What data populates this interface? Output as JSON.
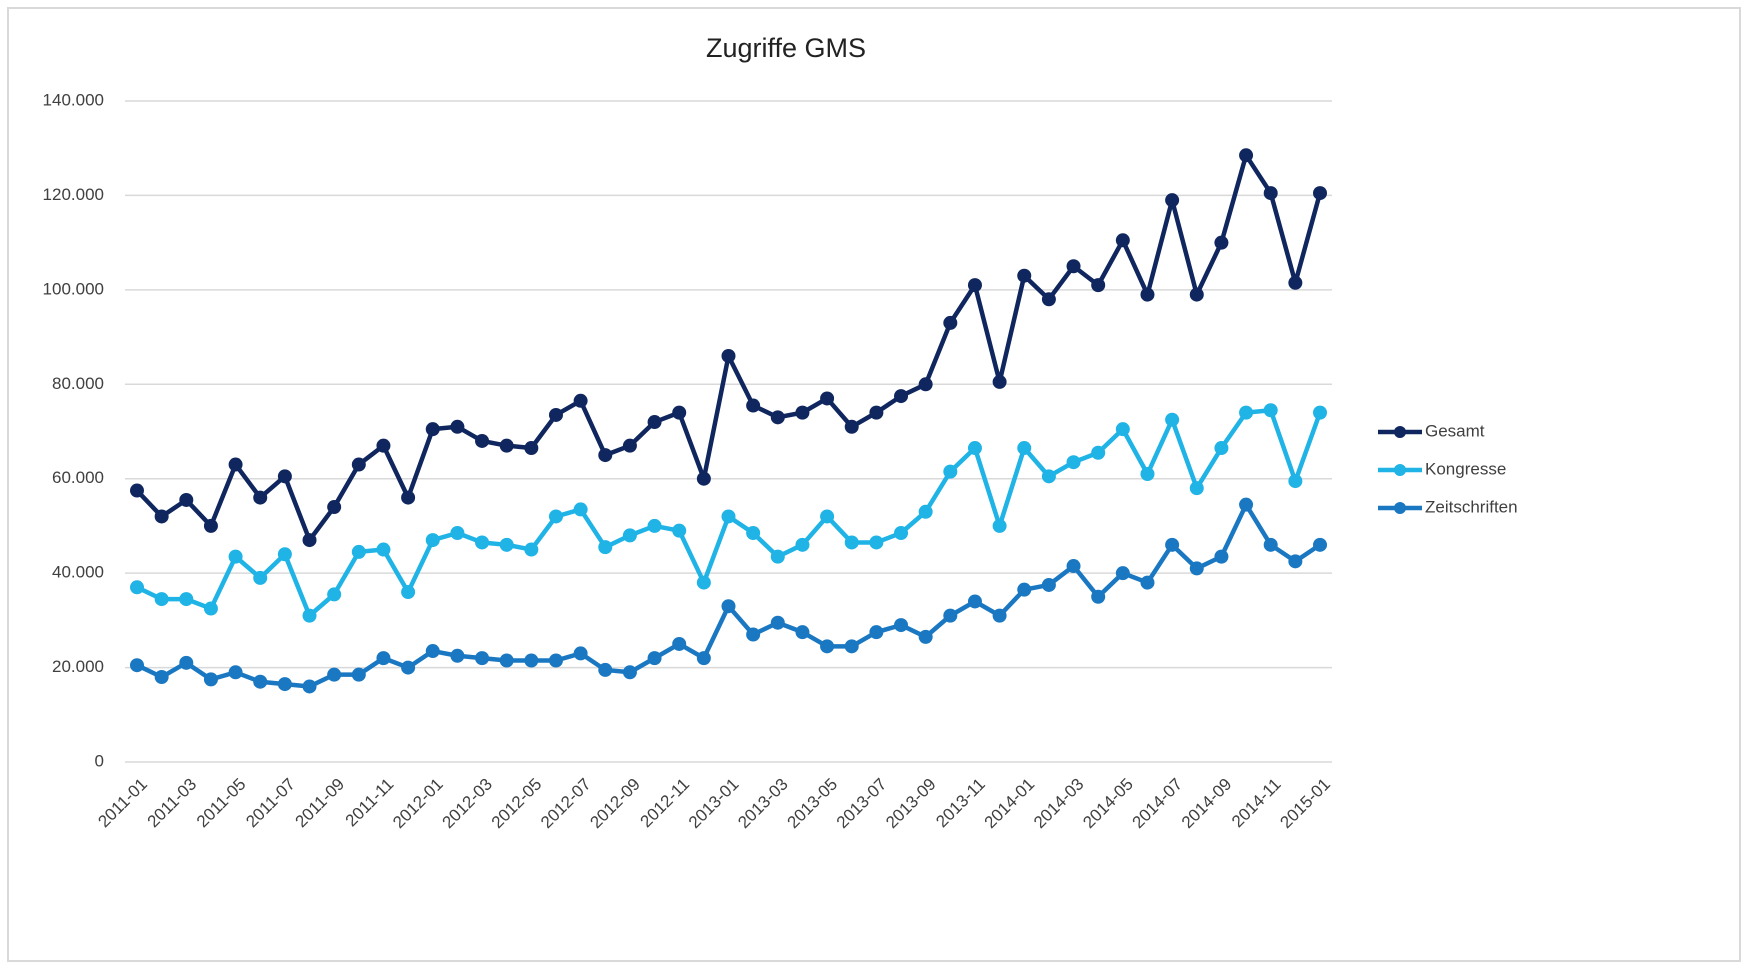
{
  "chart_data": {
    "type": "line",
    "title": "Zugriffe GMS",
    "categories": [
      "2011-01",
      null,
      "2011-03",
      null,
      "2011-05",
      null,
      "2011-07",
      null,
      "2011-09",
      null,
      "2011-11",
      null,
      "2012-01",
      null,
      "2012-03",
      null,
      "2012-05",
      null,
      "2012-07",
      null,
      "2012-09",
      null,
      "2012-11",
      null,
      "2013-01",
      null,
      "2013-03",
      null,
      "2013-05",
      null,
      "2013-07",
      null,
      "2013-09",
      null,
      "2013-11",
      null,
      "2014-01",
      null,
      "2014-03",
      null,
      "2014-05",
      null,
      "2014-07",
      null,
      "2014-09",
      null,
      "2014-11",
      null,
      "2015-01"
    ],
    "series": [
      {
        "name": "Gesamt",
        "color": "#10265e",
        "values": [
          57500,
          52000,
          55500,
          50000,
          63000,
          56000,
          60500,
          47000,
          54000,
          63000,
          67000,
          56000,
          70500,
          71000,
          68000,
          67000,
          66500,
          73500,
          76500,
          65000,
          67000,
          72000,
          74000,
          60000,
          86000,
          75500,
          73000,
          74000,
          77000,
          71000,
          74000,
          77500,
          80000,
          93000,
          101000,
          80500,
          103000,
          98000,
          105000,
          101000,
          110500,
          99000,
          119000,
          99000,
          110000,
          128500,
          120500,
          101500,
          120500
        ]
      },
      {
        "name": "Kongresse",
        "color": "#1fb3e6",
        "values": [
          37000,
          34500,
          34500,
          32500,
          43500,
          39000,
          44000,
          31000,
          35500,
          44500,
          45000,
          36000,
          47000,
          48500,
          46500,
          46000,
          45000,
          52000,
          53500,
          45500,
          48000,
          50000,
          49000,
          38000,
          52000,
          48500,
          43500,
          46000,
          52000,
          46500,
          46500,
          48500,
          53000,
          61500,
          66500,
          50000,
          66500,
          60500,
          63500,
          65500,
          70500,
          61000,
          72500,
          58000,
          66500,
          74000,
          74500,
          59500,
          74000
        ]
      },
      {
        "name": "Zeitschriften",
        "color": "#1a78c2",
        "values": [
          20500,
          18000,
          21000,
          17500,
          19000,
          17000,
          16500,
          16000,
          18500,
          18500,
          22000,
          20000,
          23500,
          22500,
          22000,
          21500,
          21500,
          21500,
          23000,
          19500,
          19000,
          22000,
          25000,
          22000,
          33000,
          27000,
          29500,
          27500,
          24500,
          24500,
          27500,
          29000,
          26500,
          31000,
          34000,
          31000,
          36500,
          37500,
          41500,
          35000,
          40000,
          38000,
          46000,
          41000,
          43500,
          54500,
          46000,
          42500,
          46000
        ]
      }
    ],
    "ylim": [
      0,
      140000
    ],
    "yticks": [
      0,
      {
        "value": 20000,
        "label": "20.000"
      },
      {
        "value": 40000,
        "label": "40.000"
      },
      {
        "value": 60000,
        "label": "60.000"
      },
      {
        "value": 80000,
        "label": "80.000"
      },
      {
        "value": 100000,
        "label": "100.000"
      },
      {
        "value": 120000,
        "label": "120.000"
      },
      {
        "value": 140000,
        "label": "140.000"
      }
    ],
    "grid": true,
    "legend": "right"
  }
}
